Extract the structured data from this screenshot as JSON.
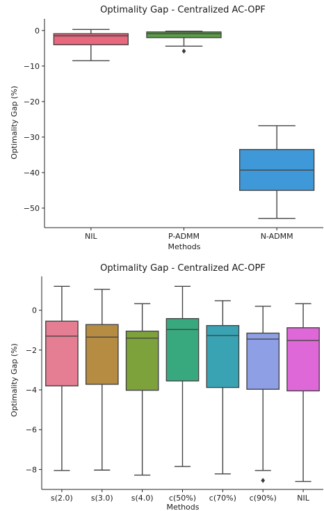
{
  "chart_data": [
    {
      "type": "box",
      "title": "Optimality Gap - Centralized AC-OPF",
      "xlabel": "Methods",
      "ylabel": "Optimality Gap (%)",
      "ylim": [
        -55.5,
        3.3
      ],
      "yticks": [
        0,
        -10,
        -20,
        -30,
        -40,
        -50
      ],
      "ytick_labels": [
        "0",
        "−10",
        "−20",
        "−30",
        "−40",
        "−50"
      ],
      "grid": false,
      "categories": [
        "NIL",
        "P-ADMM",
        "N-ADMM"
      ],
      "series": [
        {
          "category": "NIL",
          "color": "#e8687e",
          "whislo": -8.5,
          "q1": -4.0,
          "median": -1.5,
          "q3": -0.9,
          "whishi": 0.3,
          "fliers": []
        },
        {
          "category": "P-ADMM",
          "color": "#5a9f46",
          "whislo": -4.4,
          "q1": -2.0,
          "median": -0.9,
          "q3": -0.4,
          "whishi": -0.2,
          "fliers": [
            -5.8
          ]
        },
        {
          "category": "N-ADMM",
          "color": "#3f99d8",
          "whislo": -52.9,
          "q1": -45.0,
          "median": -39.3,
          "q3": -33.5,
          "whishi": -26.8,
          "fliers": []
        }
      ]
    },
    {
      "type": "box",
      "title": "Optimality Gap - Centralized AC-OPF",
      "xlabel": "Methods",
      "ylabel": "Optimality Gap (%)",
      "ylim": [
        -9.0,
        1.7
      ],
      "yticks": [
        0,
        -2,
        -4,
        -6,
        -8
      ],
      "ytick_labels": [
        "0",
        "−2",
        "−4",
        "−6",
        "−8"
      ],
      "grid": false,
      "categories": [
        "s(2.0)",
        "s(3.0)",
        "s(4.0)",
        "c(50%)",
        "c(70%)",
        "c(90%)",
        "NIL"
      ],
      "series": [
        {
          "category": "s(2.0)",
          "color": "#e57e93",
          "whislo": -8.05,
          "q1": -3.8,
          "median": -1.3,
          "q3": -0.55,
          "whishi": 1.2,
          "fliers": []
        },
        {
          "category": "s(3.0)",
          "color": "#b68c43",
          "whislo": -8.03,
          "q1": -3.72,
          "median": -1.35,
          "q3": -0.72,
          "whishi": 1.05,
          "fliers": []
        },
        {
          "category": "s(4.0)",
          "color": "#7ea23b",
          "whislo": -8.28,
          "q1": -4.02,
          "median": -1.4,
          "q3": -1.05,
          "whishi": 0.33,
          "fliers": []
        },
        {
          "category": "c(50%)",
          "color": "#38a97e",
          "whislo": -7.85,
          "q1": -3.55,
          "median": -0.97,
          "q3": -0.42,
          "whishi": 1.2,
          "fliers": []
        },
        {
          "category": "c(70%)",
          "color": "#3aa3b3",
          "whislo": -8.22,
          "q1": -3.88,
          "median": -1.27,
          "q3": -0.77,
          "whishi": 0.48,
          "fliers": []
        },
        {
          "category": "c(90%)",
          "color": "#8e9fe6",
          "whislo": -8.05,
          "q1": -3.97,
          "median": -1.45,
          "q3": -1.15,
          "whishi": 0.2,
          "fliers": [
            -8.55
          ]
        },
        {
          "category": "NIL",
          "color": "#df68d8",
          "whislo": -8.6,
          "q1": -4.05,
          "median": -1.52,
          "q3": -0.88,
          "whishi": 0.33,
          "fliers": []
        }
      ]
    }
  ]
}
